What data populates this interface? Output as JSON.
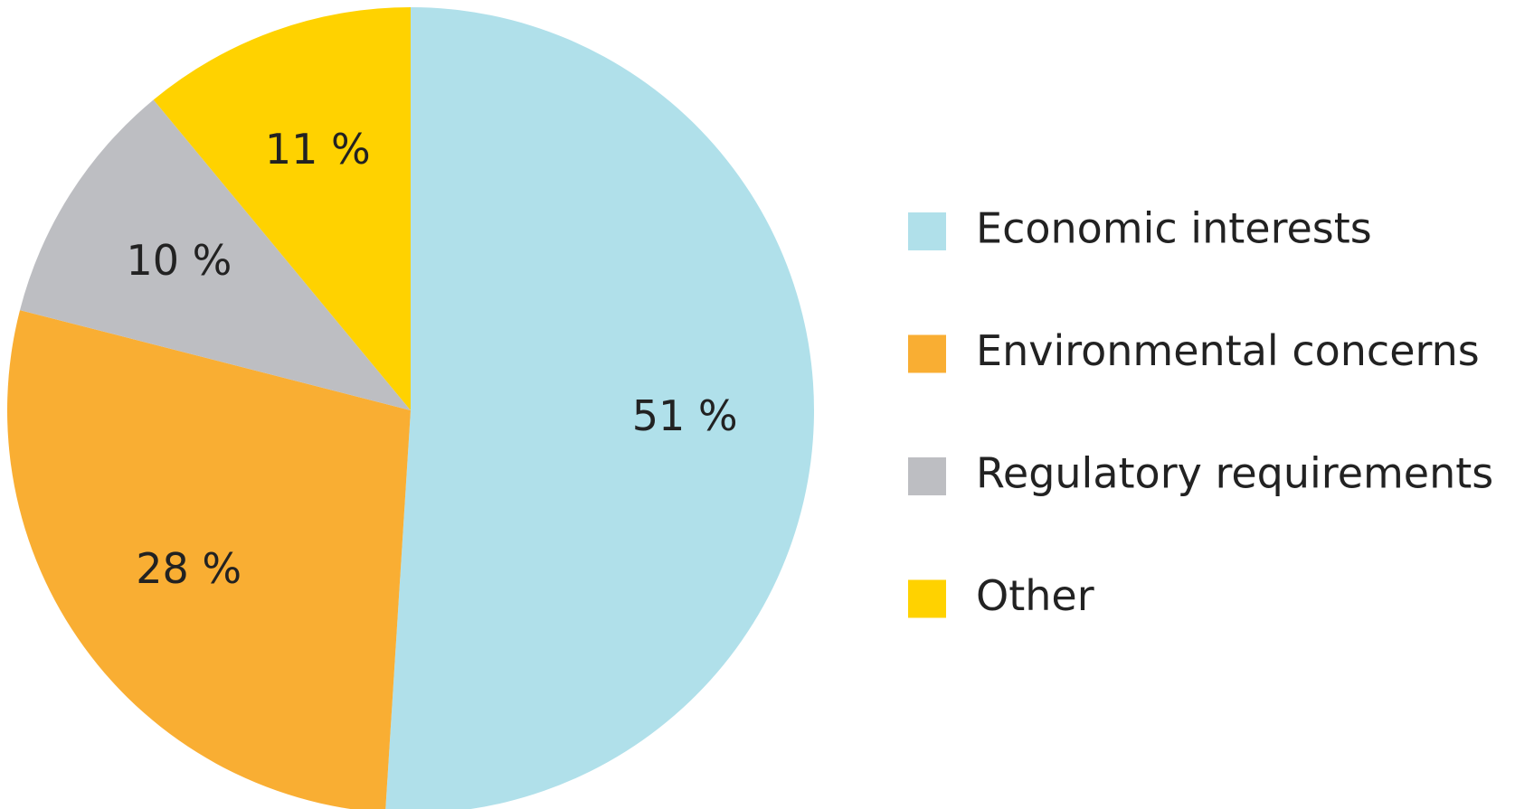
{
  "chart_data": {
    "type": "pie",
    "categories": [
      "Economic interests",
      "Environmental concerns",
      "Regulatory requirements",
      "Other"
    ],
    "values": [
      51,
      28,
      10,
      11
    ],
    "value_labels": [
      "51 %",
      "28 %",
      "10 %",
      "11 %"
    ],
    "colors": [
      "#b0e0ea",
      "#f9ae33",
      "#bdbec2",
      "#ffd200"
    ],
    "legend": "right"
  }
}
